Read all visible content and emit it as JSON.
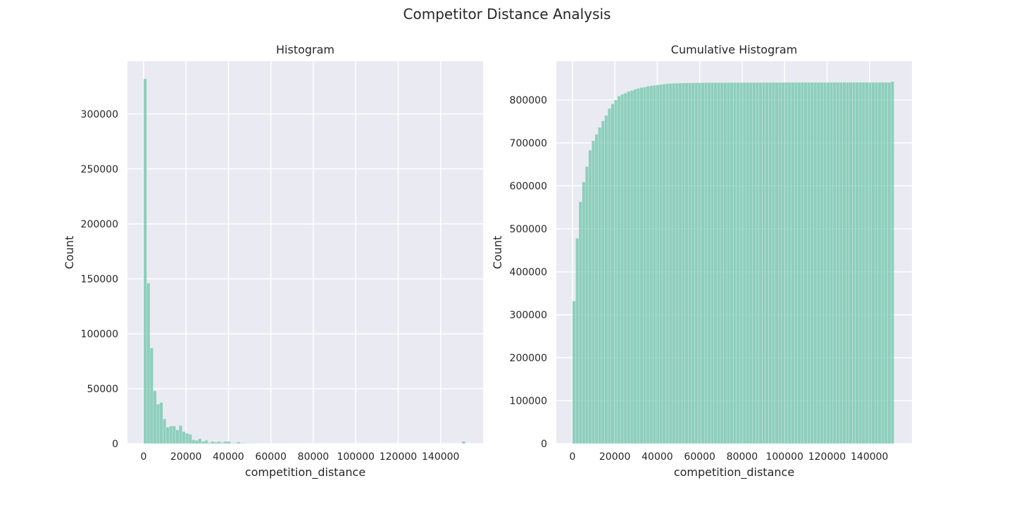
{
  "figure": {
    "suptitle": "Competitor Distance Analysis",
    "background": "#ffffff",
    "axes_facecolor": "#eaeaf2",
    "grid_color": "#ffffff",
    "bar_color": "#66c2a5",
    "bar_alpha": 0.7
  },
  "chart_data": [
    {
      "type": "bar",
      "title": "Histogram",
      "xlabel": "competition_distance",
      "ylabel": "Count",
      "grid": true,
      "xlim": [
        -7600,
        160000
      ],
      "ylim": [
        0,
        348000
      ],
      "xticks": [
        0,
        20000,
        40000,
        60000,
        80000,
        100000,
        120000,
        140000
      ],
      "yticks": [
        0,
        50000,
        100000,
        150000,
        200000,
        250000,
        300000
      ],
      "bin_start": 0,
      "bin_width": 1516,
      "values": [
        332000,
        146000,
        87000,
        48000,
        36000,
        37500,
        22500,
        15000,
        16000,
        16000,
        12500,
        16500,
        11000,
        9500,
        8500,
        3500,
        3000,
        4500,
        2000,
        3000,
        1000,
        2000,
        1500,
        2000,
        1000,
        2000,
        2000,
        500,
        500,
        1500,
        500,
        500,
        300,
        300,
        300,
        200,
        200,
        150,
        150,
        150,
        100,
        100,
        100,
        100,
        100,
        80,
        80,
        80,
        80,
        50,
        50,
        50,
        50,
        50,
        50,
        50,
        30,
        30,
        30,
        30,
        30,
        30,
        30,
        30,
        20,
        20,
        20,
        20,
        20,
        20,
        20,
        20,
        20,
        20,
        20,
        20,
        20,
        20,
        20,
        20,
        20,
        20,
        20,
        20,
        20,
        20,
        20,
        20,
        20,
        20,
        20,
        20,
        20,
        20,
        20,
        20,
        20,
        20,
        20,
        2000
      ]
    },
    {
      "type": "bar",
      "title": "Cumulative Histogram",
      "xlabel": "competition_distance",
      "ylabel": "Count",
      "grid": true,
      "xlim": [
        -7600,
        160000
      ],
      "ylim": [
        0,
        890000
      ],
      "xticks": [
        0,
        20000,
        40000,
        60000,
        80000,
        100000,
        120000,
        140000
      ],
      "yticks": [
        0,
        100000,
        200000,
        300000,
        400000,
        500000,
        600000,
        700000,
        800000
      ],
      "bin_start": 0,
      "bin_width": 1516,
      "values": [
        332000,
        478000,
        563000,
        609000,
        645000,
        683000,
        705000,
        720000,
        736000,
        751000,
        764000,
        780000,
        791000,
        800000,
        809000,
        813000,
        816000,
        820000,
        822000,
        825000,
        827000,
        829000,
        830000,
        832000,
        833000,
        834000,
        835000,
        836000,
        837000,
        838000,
        838500,
        838800,
        839000,
        839200,
        839400,
        839600,
        839700,
        839800,
        839900,
        840000,
        840100,
        840200,
        840300,
        840300,
        840400,
        840400,
        840400,
        840500,
        840500,
        840500,
        840500,
        840500,
        840600,
        840600,
        840600,
        840600,
        840600,
        840600,
        840700,
        840700,
        840700,
        840700,
        840700,
        840700,
        840700,
        840700,
        840800,
        840800,
        840800,
        840800,
        840800,
        840800,
        840800,
        840800,
        840800,
        840800,
        840800,
        840800,
        840800,
        840800,
        840800,
        840800,
        840900,
        840900,
        840900,
        840900,
        840900,
        840900,
        840900,
        840900,
        840900,
        840900,
        840900,
        840900,
        840900,
        840900,
        840900,
        840900,
        840900,
        843000
      ]
    }
  ]
}
